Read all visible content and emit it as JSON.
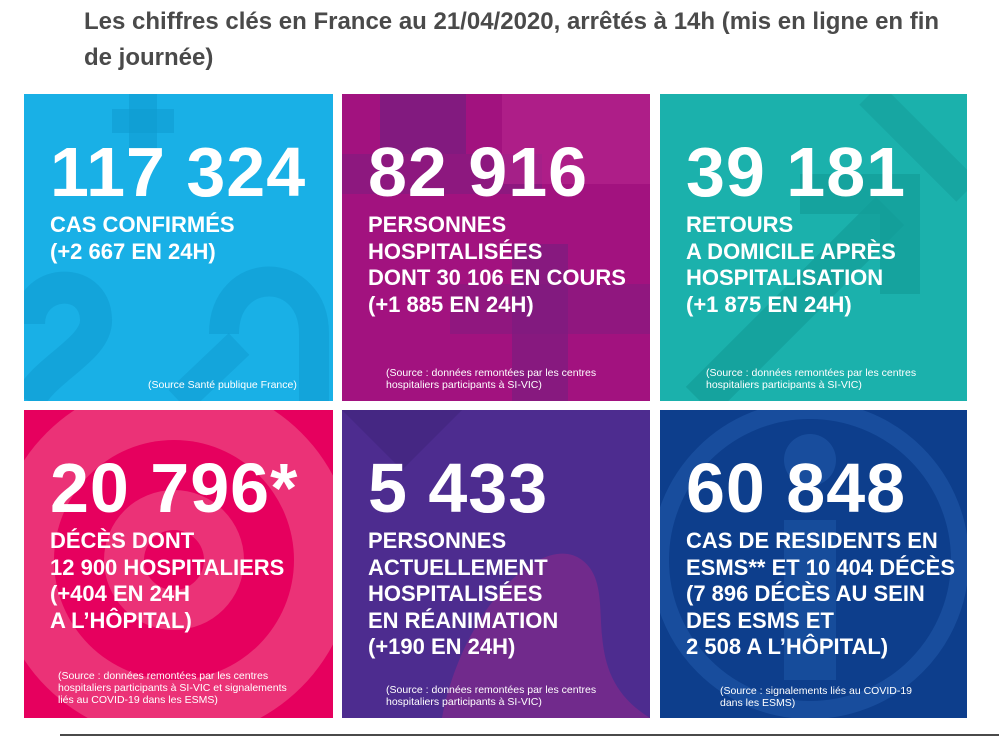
{
  "title": "Les chiffres clés en France au 21/04/2020, arrêtés à 14h (mis en ligne en fin de journée)",
  "tiles": [
    {
      "number": "117 324",
      "label_lines": [
        "CAS CONFIRMÉS",
        "(+2 667 EN 24H)"
      ],
      "source_lines": [
        "(Source Santé publique France)"
      ],
      "color": "#19b0e6"
    },
    {
      "number": "82 916",
      "label_lines": [
        "PERSONNES",
        "HOSPITALISÉES",
        "DONT 30 106 EN COURS",
        "(+1 885 EN 24H)"
      ],
      "source_lines": [
        "(Source : données remontées par les centres",
        "hospitaliers participants à SI-VIC)"
      ],
      "color": "#a2127f"
    },
    {
      "number": "39 181",
      "label_lines": [
        "RETOURS",
        "A DOMICILE APRÈS",
        "HOSPITALISATION",
        "(+1 875 EN 24H)"
      ],
      "source_lines": [
        "(Source : données remontées par les centres",
        "hospitaliers participants à SI-VIC)"
      ],
      "color": "#1bb1ac"
    },
    {
      "number": "20 796*",
      "label_lines": [
        "DÉCÈS DONT",
        "12 900 HOSPITALIERS",
        "(+404 EN 24H",
        "A L’HÔPITAL)"
      ],
      "source_lines": [
        "(Source : données remontées par les centres",
        "hospitaliers participants à SI-VIC et signalements",
        "liés au COVID-19 dans les ESMS)"
      ],
      "color": "#e6005e"
    },
    {
      "number": "5 433",
      "label_lines": [
        "PERSONNES",
        "ACTUELLEMENT",
        "HOSPITALISÉES",
        "EN RÉANIMATION",
        "(+190 EN 24H)"
      ],
      "source_lines": [
        "(Source : données remontées par les centres",
        "hospitaliers participants à SI-VIC)"
      ],
      "color": "#4d2c8f"
    },
    {
      "number": "60 848",
      "label_lines": [
        "CAS DE RESIDENTS EN",
        "ESMS** ET 10 404 DÉCÈS",
        "(7 896 DÉCÈS AU SEIN",
        "DES ESMS ET",
        "2 508 A L’HÔPITAL)"
      ],
      "source_lines": [
        "(Source : signalements liés au COVID-19",
        "dans les ESMS)"
      ],
      "color": "#0d3e8c"
    }
  ]
}
